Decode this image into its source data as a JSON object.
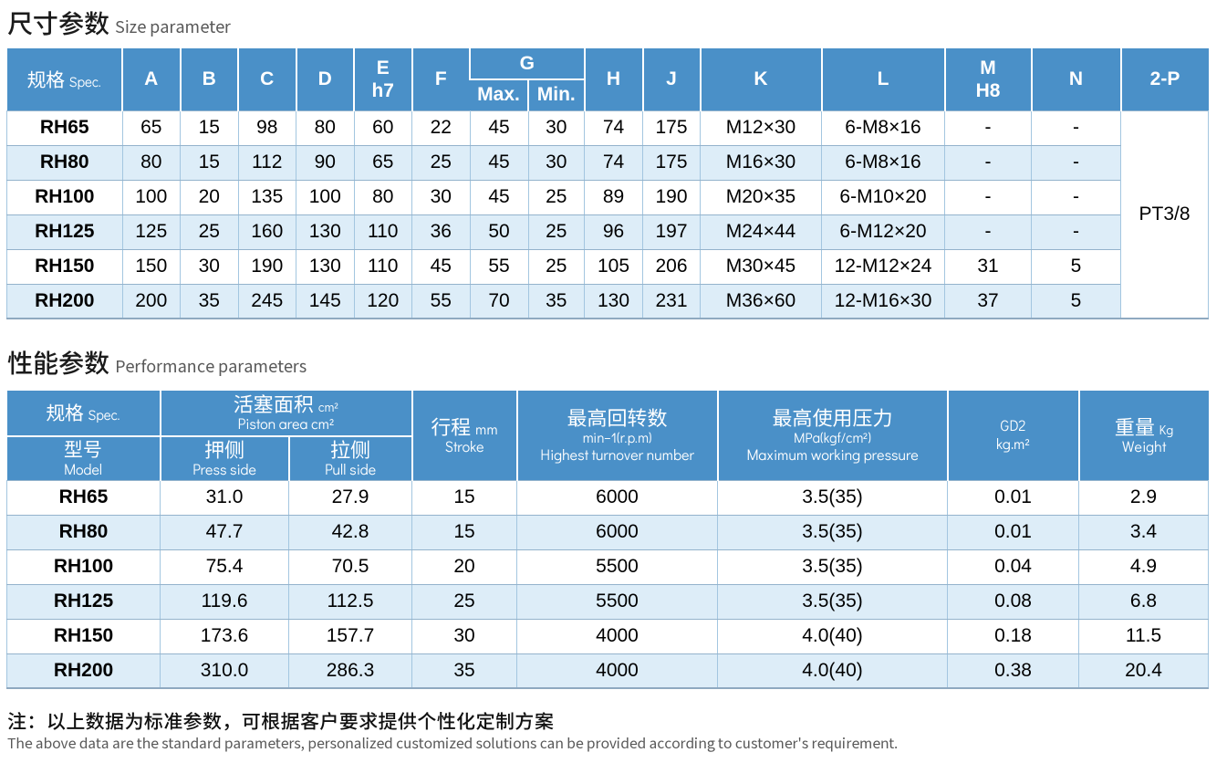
{
  "page": {
    "background": "#ffffff"
  },
  "colors": {
    "header_blue": "#4a90c8",
    "row_alt_blue": "#ddedf8",
    "grid_line": "#a3c6e0",
    "table_edge": "#8fa9c0",
    "title_text": "#1a1a1a",
    "subtitle_gray": "#595959"
  },
  "section_size": {
    "title_zh": "尺寸参数",
    "title_en": "Size parameter",
    "table": {
      "header": {
        "spec_zh": "规格",
        "spec_en": "Spec.",
        "a": "A",
        "b": "B",
        "c": "C",
        "d": "D",
        "e_line1": "E",
        "e_line2": "h7",
        "f": "F",
        "g": "G",
        "g_max": "Max.",
        "g_min": "Min.",
        "h": "H",
        "j": "J",
        "k": "K",
        "l": "L",
        "m_line1": "M",
        "m_line2": "H8",
        "n": "N",
        "p": "2-P"
      },
      "rows": [
        {
          "model": "RH65",
          "values": [
            "65",
            "15",
            "98",
            "80",
            "60",
            "22",
            "45",
            "30",
            "74",
            "175",
            "M12×30",
            "6-M8×16",
            "-",
            "-"
          ]
        },
        {
          "model": "RH80",
          "values": [
            "80",
            "15",
            "112",
            "90",
            "65",
            "25",
            "45",
            "30",
            "74",
            "175",
            "M16×30",
            "6-M8×16",
            "-",
            "-"
          ]
        },
        {
          "model": "RH100",
          "values": [
            "100",
            "20",
            "135",
            "100",
            "80",
            "30",
            "45",
            "25",
            "89",
            "190",
            "M20×35",
            "6-M10×20",
            "-",
            "-"
          ]
        },
        {
          "model": "RH125",
          "values": [
            "125",
            "25",
            "160",
            "130",
            "110",
            "36",
            "50",
            "25",
            "96",
            "197",
            "M24×44",
            "6-M12×20",
            "-",
            "-"
          ]
        },
        {
          "model": "RH150",
          "values": [
            "150",
            "30",
            "190",
            "130",
            "110",
            "45",
            "55",
            "25",
            "105",
            "206",
            "M30×45",
            "12-M12×24",
            "31",
            "5"
          ]
        },
        {
          "model": "RH200",
          "values": [
            "200",
            "35",
            "245",
            "145",
            "120",
            "55",
            "70",
            "35",
            "130",
            "231",
            "M36×60",
            "12-M16×30",
            "37",
            "5"
          ]
        }
      ],
      "merged_p_value": "PT3/8"
    }
  },
  "section_perf": {
    "title_zh": "性能参数",
    "title_en": "Performance parameters",
    "table": {
      "header": {
        "spec_zh": "规格",
        "spec_en": "Spec.",
        "model_zh": "型号",
        "model_en": "Model",
        "piston_zh": "活塞面积",
        "piston_unit": "cm²",
        "piston_en": "Piston area cm²",
        "press_zh": "押侧",
        "press_en": "Press side",
        "pull_zh": "拉侧",
        "pull_en": "Pull side",
        "stroke_zh": "行程",
        "stroke_unit": "mm",
        "stroke_en": "Stroke",
        "turnover_zh": "最高回转数",
        "turnover_unit": "min−1(r.p.m)",
        "turnover_en": "Highest turnover number",
        "pressure_zh": "最高使用压力",
        "pressure_unit": "MPa(kgf/cm²)",
        "pressure_en": "Maximum working pressure",
        "gd2_line1": "GD2",
        "gd2_line2": "kg.m²",
        "weight_zh": "重量",
        "weight_unit": "Kg",
        "weight_en": "Weight"
      },
      "rows": [
        {
          "model": "RH65",
          "values": [
            "31.0",
            "27.9",
            "15",
            "6000",
            "3.5(35)",
            "0.01",
            "2.9"
          ]
        },
        {
          "model": "RH80",
          "values": [
            "47.7",
            "42.8",
            "15",
            "6000",
            "3.5(35)",
            "0.01",
            "3.4"
          ]
        },
        {
          "model": "RH100",
          "values": [
            "75.4",
            "70.5",
            "20",
            "5500",
            "3.5(35)",
            "0.04",
            "4.9"
          ]
        },
        {
          "model": "RH125",
          "values": [
            "119.6",
            "112.5",
            "25",
            "5500",
            "3.5(35)",
            "0.08",
            "6.8"
          ]
        },
        {
          "model": "RH150",
          "values": [
            "173.6",
            "157.7",
            "30",
            "4000",
            "4.0(40)",
            "0.18",
            "11.5"
          ]
        },
        {
          "model": "RH200",
          "values": [
            "310.0",
            "286.3",
            "35",
            "4000",
            "4.0(40)",
            "0.38",
            "20.4"
          ]
        }
      ]
    }
  },
  "notes": {
    "zh": "注：以上数据为标准参数，可根据客户要求提供个性化定制方案",
    "en": "The above data are the standard parameters, personalized customized solutions can be provided according to customer's requirement."
  }
}
